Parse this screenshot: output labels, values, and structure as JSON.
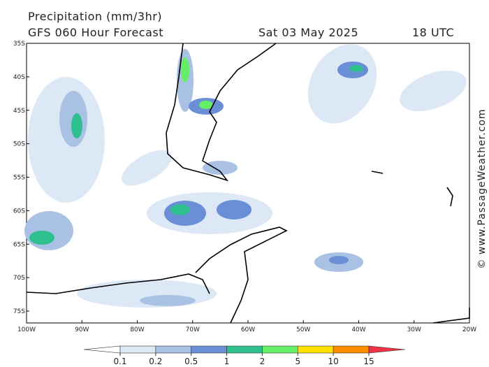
{
  "header": {
    "title": "Precipitation (mm/3hr)",
    "model": "GFS 060 Hour Forecast",
    "date": "Sat 03 May 2025",
    "time": "18 UTC"
  },
  "map": {
    "lat_labels": [
      "35S",
      "40S",
      "45S",
      "50S",
      "55S",
      "60S",
      "65S",
      "70S",
      "75S"
    ],
    "lon_labels": [
      "100W",
      "90W",
      "80W",
      "70W",
      "60W",
      "50W",
      "40W",
      "30W",
      "20W"
    ]
  },
  "colorbar": {
    "ticks": [
      0.1,
      0.2,
      0.5,
      1,
      2,
      5,
      10,
      15
    ],
    "colors": [
      "#ffffff",
      "#dde8f6",
      "#a9c1e3",
      "#6a8fd6",
      "#2fc08f",
      "#66ee66",
      "#ffe000",
      "#ff8c00",
      "#ee3344"
    ]
  },
  "watermark": "© www.PassageWeather.com"
}
